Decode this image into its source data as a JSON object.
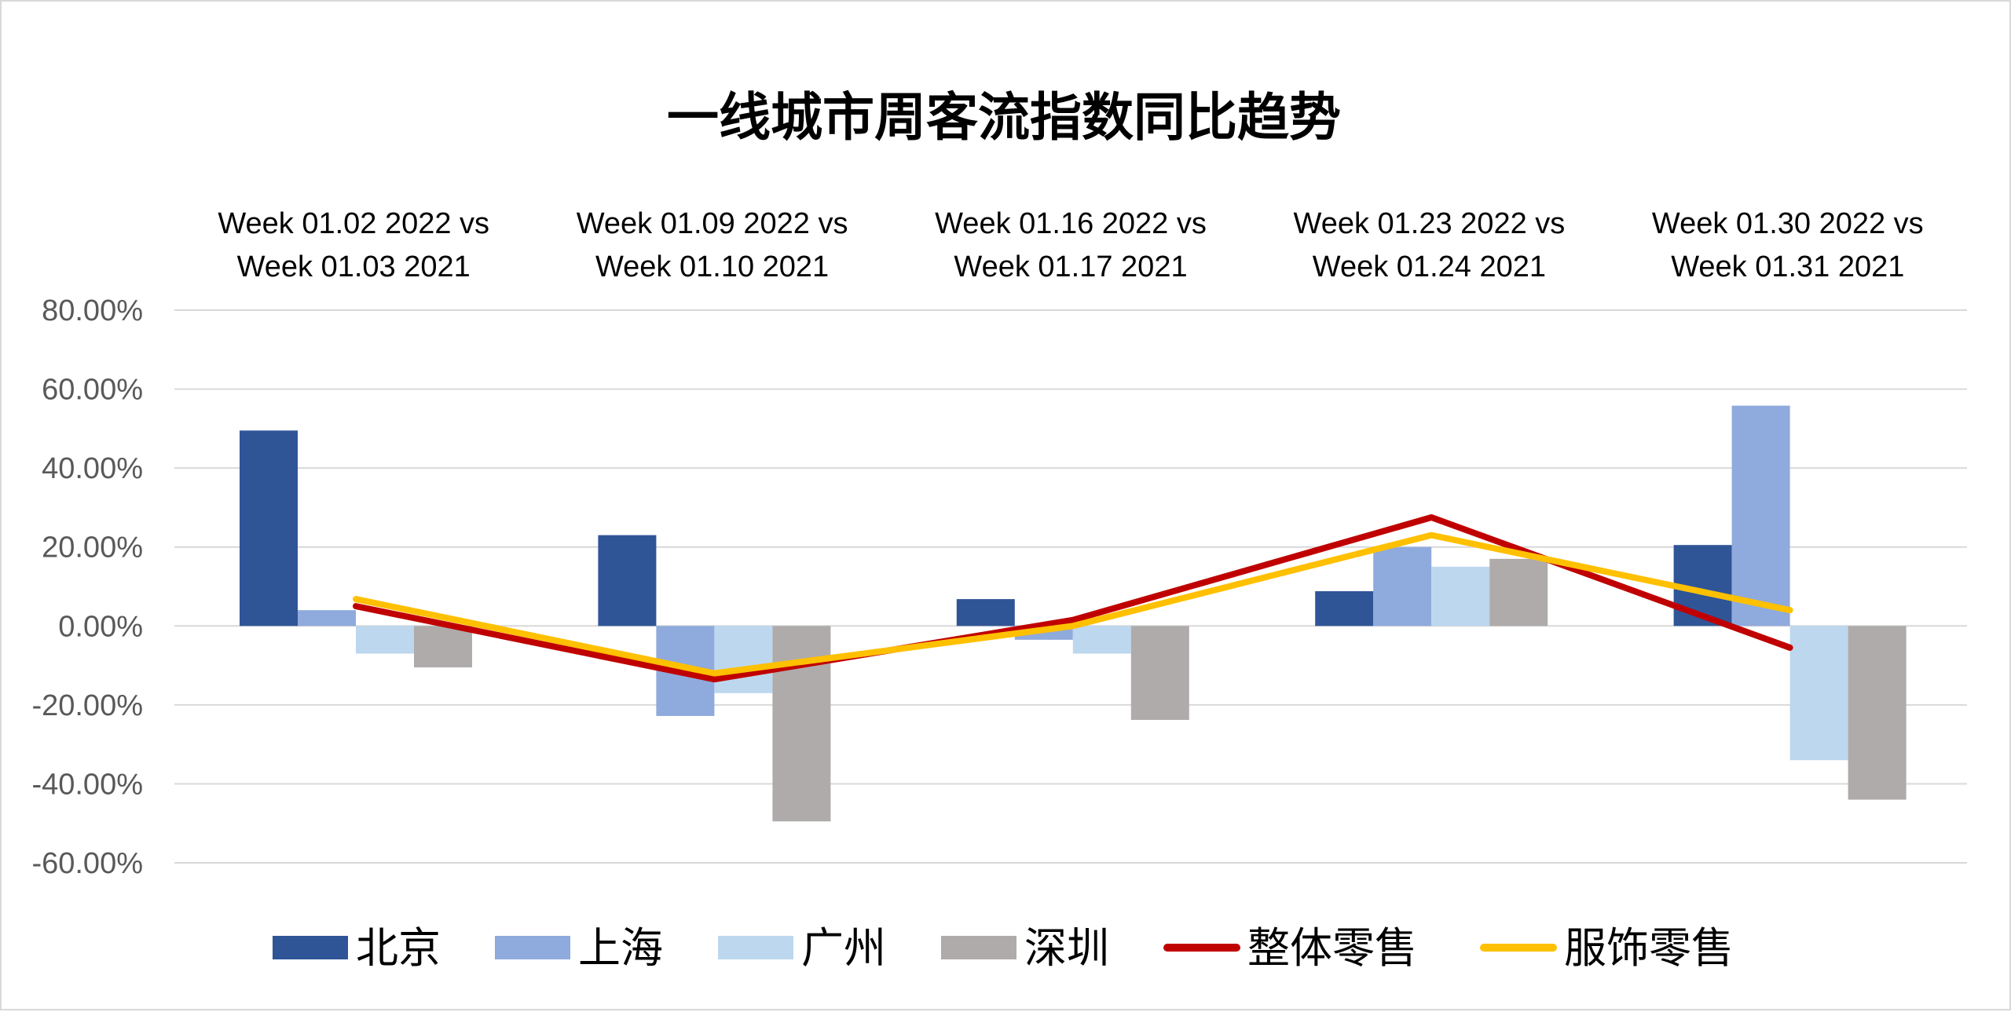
{
  "chart_data": {
    "type": "bar",
    "title": "一线城市周客流指数同比趋势",
    "categories": [
      [
        "Week 01.02 2022  vs",
        "Week 01.03 2021"
      ],
      [
        "Week 01.09 2022  vs",
        "Week 01.10 2021"
      ],
      [
        "Week 01.16 2022  vs",
        "Week 01.17 2021"
      ],
      [
        "Week 01.23 2022  vs",
        "Week 01.24 2021"
      ],
      [
        "Week 01.30 2022  vs",
        "Week 01.31 2021"
      ]
    ],
    "yticks": [
      "80.00%",
      "60.00%",
      "40.00%",
      "20.00%",
      "0.00%",
      "-20.00%",
      "-40.00%",
      "-60.00%"
    ],
    "ylim": [
      -60,
      80
    ],
    "ytick_values": [
      80,
      60,
      40,
      20,
      0,
      -20,
      -40,
      -60
    ],
    "unit": "%",
    "grid": true,
    "legend_position": "bottom",
    "bar_series": [
      {
        "name": "北京",
        "color": "#2f5597",
        "values": [
          49.5,
          23.0,
          6.8,
          8.8,
          20.5
        ]
      },
      {
        "name": "上海",
        "color": "#8faadc",
        "values": [
          4.0,
          -22.8,
          -3.5,
          20.0,
          55.8
        ]
      },
      {
        "name": "广州",
        "color": "#bdd7ee",
        "values": [
          -7.0,
          -17.0,
          -7.0,
          15.0,
          -34.0
        ]
      },
      {
        "name": "深圳",
        "color": "#afabab",
        "values": [
          -10.5,
          -49.5,
          -23.8,
          17.0,
          -44.0
        ]
      }
    ],
    "line_series": [
      {
        "name": "整体零售",
        "color": "#c00000",
        "values": [
          5.0,
          -13.5,
          1.5,
          27.5,
          -5.5
        ]
      },
      {
        "name": "服饰零售",
        "color": "#ffc000",
        "values": [
          6.8,
          -12.0,
          0.0,
          23.0,
          4.0
        ]
      }
    ]
  }
}
